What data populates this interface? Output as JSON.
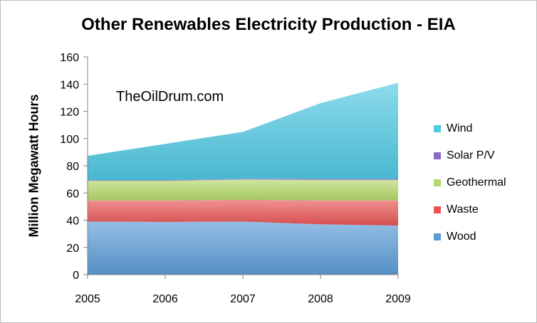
{
  "chart_data": {
    "type": "area",
    "title": "Other Renewables Electricity Production - EIA",
    "ylabel": "Million Megawatt Hours",
    "xlabel": "",
    "categories": [
      "2005",
      "2006",
      "2007",
      "2008",
      "2009"
    ],
    "ylim": [
      0,
      160
    ],
    "yticks": [
      0,
      20,
      40,
      60,
      80,
      100,
      120,
      140,
      160
    ],
    "stacked": true,
    "grid": false,
    "legend_position": "right",
    "annotation": "TheOilDrum.com",
    "series": [
      {
        "name": "Wood",
        "values": [
          39,
          38.7,
          39,
          37,
          36
        ],
        "color": "#5b9bd5"
      },
      {
        "name": "Waste",
        "values": [
          15.5,
          15.8,
          16,
          17.5,
          18.5
        ],
        "color": "#e85555"
      },
      {
        "name": "Geothermal",
        "values": [
          14.5,
          14.5,
          14.8,
          15,
          15
        ],
        "color": "#b4d86a"
      },
      {
        "name": "Solar P/V",
        "values": [
          0.5,
          0.5,
          0.6,
          0.8,
          0.8
        ],
        "color": "#8a6cc4"
      },
      {
        "name": "Wind",
        "values": [
          17.8,
          26.6,
          34.5,
          55.7,
          70.7
        ],
        "color": "#4fc8e2"
      }
    ],
    "legend_order": [
      "Wind",
      "Solar P/V",
      "Geothermal",
      "Waste",
      "Wood"
    ]
  }
}
